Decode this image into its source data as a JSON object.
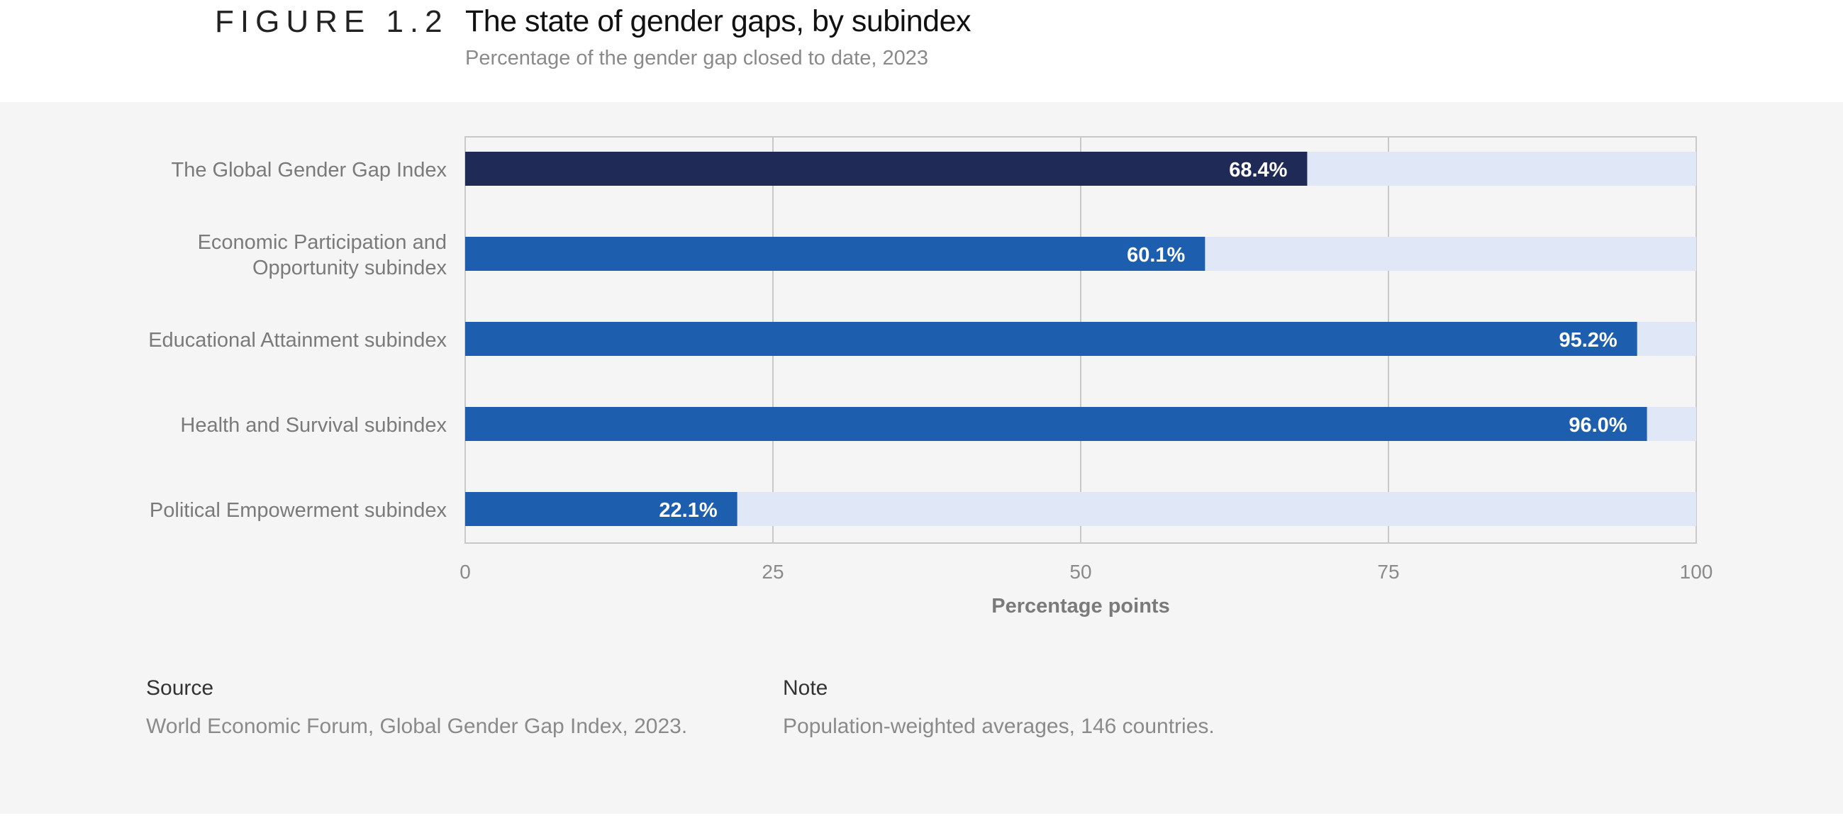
{
  "header": {
    "figure_label": "FIGURE 1.2",
    "title": "The state of gender gaps, by subindex",
    "subtitle": "Percentage of the gender gap closed to date, 2023"
  },
  "chart_data": {
    "type": "bar",
    "orientation": "horizontal",
    "categories": [
      [
        "The Global Gender Gap Index"
      ],
      [
        "Economic Participation and",
        "Opportunity subindex"
      ],
      [
        "Educational Attainment subindex"
      ],
      [
        "Health and Survival subindex"
      ],
      [
        "Political Empowerment subindex"
      ]
    ],
    "values": [
      68.4,
      60.1,
      95.2,
      96.0,
      22.1
    ],
    "value_labels": [
      "68.4%",
      "60.1%",
      "95.2%",
      "96.0%",
      "22.1%"
    ],
    "xlabel": "Percentage points",
    "xlim": [
      0,
      100
    ],
    "xticks": [
      0,
      25,
      50,
      75,
      100
    ],
    "grid": true,
    "background_bar_to": 100,
    "colors": {
      "index_bar": "#1f2a56",
      "subindex_bar": "#1d5fae",
      "remaining": "#e0e8f7",
      "grid": "#c8c8c8",
      "label_text": "#7a7a7a",
      "value_text": "#ffffff"
    }
  },
  "footer": {
    "source_head": "Source",
    "source_text": "World Economic Forum, Global Gender Gap Index, 2023.",
    "note_head": "Note",
    "note_text": "Population-weighted averages, 146 countries."
  }
}
